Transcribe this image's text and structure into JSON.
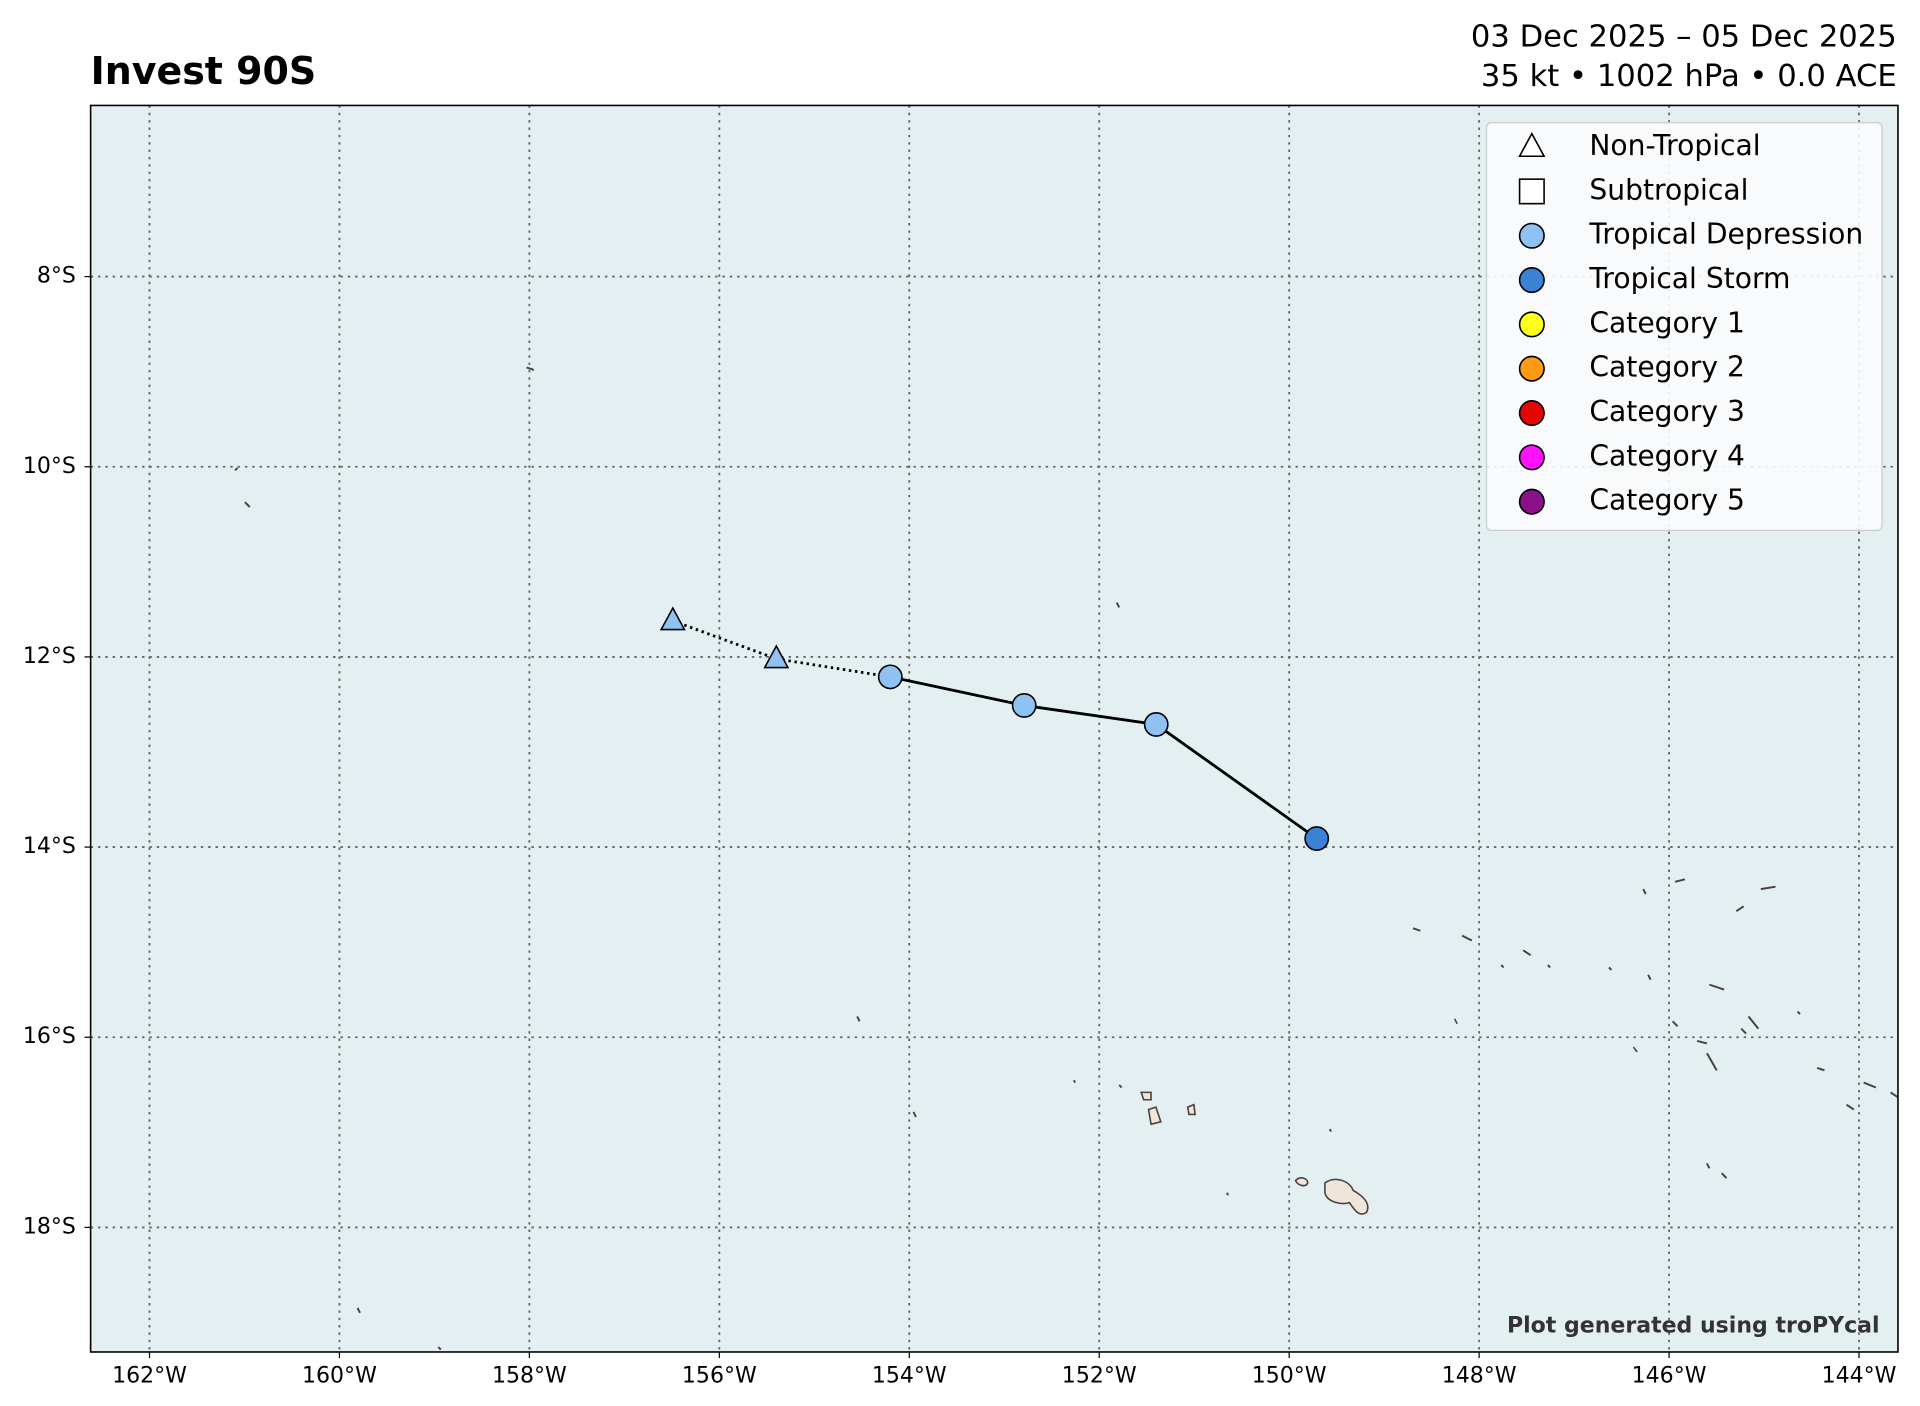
{
  "chart_data": {
    "type": "track",
    "title": "Invest 90S",
    "subtitle": [
      "03 Dec 2025 – 05 Dec 2025",
      "35 kt • 1002 hPa • 0.0 ACE"
    ],
    "credit": "Plot generated using troPYcal",
    "xlim": [
      -162.62,
      -143.59
    ],
    "ylim": [
      -19.31,
      -6.2
    ],
    "xticks": [
      {
        "value": -162,
        "label": "162°W"
      },
      {
        "value": -160,
        "label": "160°W"
      },
      {
        "value": -158,
        "label": "158°W"
      },
      {
        "value": -156,
        "label": "156°W"
      },
      {
        "value": -154,
        "label": "154°W"
      },
      {
        "value": -152,
        "label": "152°W"
      },
      {
        "value": -150,
        "label": "150°W"
      },
      {
        "value": -148,
        "label": "148°W"
      },
      {
        "value": -146,
        "label": "146°W"
      },
      {
        "value": -144,
        "label": "144°W"
      }
    ],
    "yticks": [
      {
        "value": -8,
        "label": "8°S"
      },
      {
        "value": -10,
        "label": "10°S"
      },
      {
        "value": -12,
        "label": "12°S"
      },
      {
        "value": -14,
        "label": "14°S"
      },
      {
        "value": -16,
        "label": "16°S"
      },
      {
        "value": -18,
        "label": "18°S"
      }
    ],
    "grid": true,
    "legend_position": "upper right",
    "legend": [
      {
        "name": "Non-Tropical",
        "marker": "triangle",
        "color": "#ffffff"
      },
      {
        "name": "Subtropical",
        "marker": "square",
        "color": "#ffffff"
      },
      {
        "name": "Tropical Depression",
        "marker": "circle",
        "color": "#8fc2f2"
      },
      {
        "name": "Tropical Storm",
        "marker": "circle",
        "color": "#3a82d6"
      },
      {
        "name": "Category 1",
        "marker": "circle",
        "color": "#ffff1a"
      },
      {
        "name": "Category 2",
        "marker": "circle",
        "color": "#ff9a12"
      },
      {
        "name": "Category 3",
        "marker": "circle",
        "color": "#e50505"
      },
      {
        "name": "Category 4",
        "marker": "circle",
        "color": "#ff10ff"
      },
      {
        "name": "Category 5",
        "marker": "circle",
        "color": "#8c1089"
      }
    ],
    "track": {
      "lon": [
        -156.49,
        -155.4,
        -154.2,
        -152.79,
        -151.4,
        -149.71
      ],
      "lat": [
        -11.62,
        -12.02,
        -12.21,
        -12.51,
        -12.71,
        -13.91
      ],
      "marker": [
        "triangle",
        "triangle",
        "circle",
        "circle",
        "circle",
        "circle"
      ],
      "color": [
        "#8fc2f2",
        "#8fc2f2",
        "#8fc2f2",
        "#8fc2f2",
        "#8fc2f2",
        "#3a82d6"
      ],
      "line": [
        "dotted",
        "dotted",
        "solid",
        "solid",
        "solid",
        "solid"
      ]
    }
  }
}
